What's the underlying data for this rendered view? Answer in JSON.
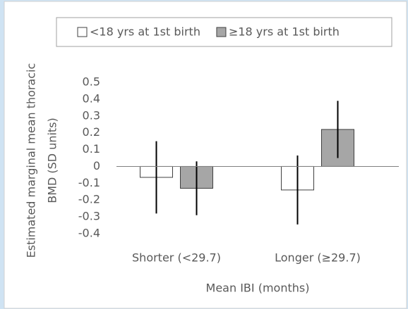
{
  "chart_data": {
    "type": "bar",
    "ylabel": [
      "Estimated marginal mean thoracic",
      "BMD (SD units)"
    ],
    "xlabel": "Mean IBI (months)",
    "categories": [
      "Shorter (<29.7)",
      "Longer (≥29.7)"
    ],
    "series": [
      {
        "name": "<18 yrs at 1st birth",
        "color": "#ffffff",
        "values": [
          -0.065,
          -0.14
        ],
        "errors": [
          0.215,
          0.205
        ]
      },
      {
        "name": "≥18 yrs at 1st birth",
        "color": "#a6a6a6",
        "values": [
          -0.13,
          0.22
        ],
        "errors": [
          0.16,
          0.17
        ]
      }
    ],
    "ylim": [
      -0.4,
      0.5
    ],
    "yticks": [
      0.5,
      0.4,
      0.3,
      0.2,
      0.1,
      0,
      -0.1,
      -0.2,
      -0.3,
      -0.4
    ],
    "legend": "top"
  }
}
